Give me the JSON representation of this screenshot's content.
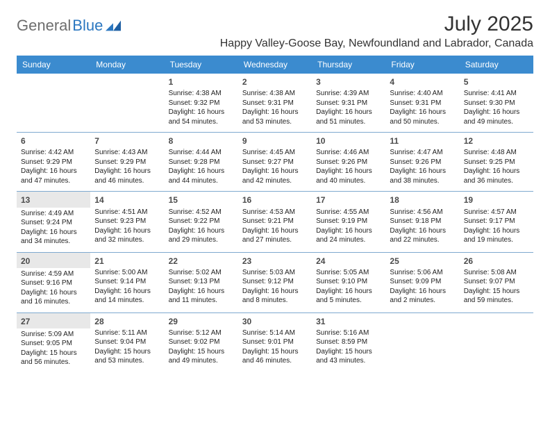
{
  "logo": {
    "word1": "General",
    "word2": "Blue"
  },
  "title": "July 2025",
  "location": "Happy Valley-Goose Bay, Newfoundland and Labrador, Canada",
  "colors": {
    "header_bg": "#3b8bcf",
    "header_text": "#ffffff",
    "row_border": "#7ea9cf",
    "shade_bg": "#e8e8e8",
    "body_text": "#222222",
    "logo_gray": "#6d6d6d",
    "logo_blue": "#2b77c0"
  },
  "weekdays": [
    "Sunday",
    "Monday",
    "Tuesday",
    "Wednesday",
    "Thursday",
    "Friday",
    "Saturday"
  ],
  "weeks": [
    [
      null,
      null,
      {
        "n": "1",
        "sr": "Sunrise: 4:38 AM",
        "ss": "Sunset: 9:32 PM",
        "dl": "Daylight: 16 hours and 54 minutes."
      },
      {
        "n": "2",
        "sr": "Sunrise: 4:38 AM",
        "ss": "Sunset: 9:31 PM",
        "dl": "Daylight: 16 hours and 53 minutes."
      },
      {
        "n": "3",
        "sr": "Sunrise: 4:39 AM",
        "ss": "Sunset: 9:31 PM",
        "dl": "Daylight: 16 hours and 51 minutes."
      },
      {
        "n": "4",
        "sr": "Sunrise: 4:40 AM",
        "ss": "Sunset: 9:31 PM",
        "dl": "Daylight: 16 hours and 50 minutes."
      },
      {
        "n": "5",
        "sr": "Sunrise: 4:41 AM",
        "ss": "Sunset: 9:30 PM",
        "dl": "Daylight: 16 hours and 49 minutes."
      }
    ],
    [
      {
        "n": "6",
        "sr": "Sunrise: 4:42 AM",
        "ss": "Sunset: 9:29 PM",
        "dl": "Daylight: 16 hours and 47 minutes."
      },
      {
        "n": "7",
        "sr": "Sunrise: 4:43 AM",
        "ss": "Sunset: 9:29 PM",
        "dl": "Daylight: 16 hours and 46 minutes."
      },
      {
        "n": "8",
        "sr": "Sunrise: 4:44 AM",
        "ss": "Sunset: 9:28 PM",
        "dl": "Daylight: 16 hours and 44 minutes."
      },
      {
        "n": "9",
        "sr": "Sunrise: 4:45 AM",
        "ss": "Sunset: 9:27 PM",
        "dl": "Daylight: 16 hours and 42 minutes."
      },
      {
        "n": "10",
        "sr": "Sunrise: 4:46 AM",
        "ss": "Sunset: 9:26 PM",
        "dl": "Daylight: 16 hours and 40 minutes."
      },
      {
        "n": "11",
        "sr": "Sunrise: 4:47 AM",
        "ss": "Sunset: 9:26 PM",
        "dl": "Daylight: 16 hours and 38 minutes."
      },
      {
        "n": "12",
        "sr": "Sunrise: 4:48 AM",
        "ss": "Sunset: 9:25 PM",
        "dl": "Daylight: 16 hours and 36 minutes."
      }
    ],
    [
      {
        "n": "13",
        "sr": "Sunrise: 4:49 AM",
        "ss": "Sunset: 9:24 PM",
        "dl": "Daylight: 16 hours and 34 minutes.",
        "shade": true
      },
      {
        "n": "14",
        "sr": "Sunrise: 4:51 AM",
        "ss": "Sunset: 9:23 PM",
        "dl": "Daylight: 16 hours and 32 minutes."
      },
      {
        "n": "15",
        "sr": "Sunrise: 4:52 AM",
        "ss": "Sunset: 9:22 PM",
        "dl": "Daylight: 16 hours and 29 minutes."
      },
      {
        "n": "16",
        "sr": "Sunrise: 4:53 AM",
        "ss": "Sunset: 9:21 PM",
        "dl": "Daylight: 16 hours and 27 minutes."
      },
      {
        "n": "17",
        "sr": "Sunrise: 4:55 AM",
        "ss": "Sunset: 9:19 PM",
        "dl": "Daylight: 16 hours and 24 minutes."
      },
      {
        "n": "18",
        "sr": "Sunrise: 4:56 AM",
        "ss": "Sunset: 9:18 PM",
        "dl": "Daylight: 16 hours and 22 minutes."
      },
      {
        "n": "19",
        "sr": "Sunrise: 4:57 AM",
        "ss": "Sunset: 9:17 PM",
        "dl": "Daylight: 16 hours and 19 minutes."
      }
    ],
    [
      {
        "n": "20",
        "sr": "Sunrise: 4:59 AM",
        "ss": "Sunset: 9:16 PM",
        "dl": "Daylight: 16 hours and 16 minutes.",
        "shade": true
      },
      {
        "n": "21",
        "sr": "Sunrise: 5:00 AM",
        "ss": "Sunset: 9:14 PM",
        "dl": "Daylight: 16 hours and 14 minutes."
      },
      {
        "n": "22",
        "sr": "Sunrise: 5:02 AM",
        "ss": "Sunset: 9:13 PM",
        "dl": "Daylight: 16 hours and 11 minutes."
      },
      {
        "n": "23",
        "sr": "Sunrise: 5:03 AM",
        "ss": "Sunset: 9:12 PM",
        "dl": "Daylight: 16 hours and 8 minutes."
      },
      {
        "n": "24",
        "sr": "Sunrise: 5:05 AM",
        "ss": "Sunset: 9:10 PM",
        "dl": "Daylight: 16 hours and 5 minutes."
      },
      {
        "n": "25",
        "sr": "Sunrise: 5:06 AM",
        "ss": "Sunset: 9:09 PM",
        "dl": "Daylight: 16 hours and 2 minutes."
      },
      {
        "n": "26",
        "sr": "Sunrise: 5:08 AM",
        "ss": "Sunset: 9:07 PM",
        "dl": "Daylight: 15 hours and 59 minutes."
      }
    ],
    [
      {
        "n": "27",
        "sr": "Sunrise: 5:09 AM",
        "ss": "Sunset: 9:05 PM",
        "dl": "Daylight: 15 hours and 56 minutes.",
        "shade": true
      },
      {
        "n": "28",
        "sr": "Sunrise: 5:11 AM",
        "ss": "Sunset: 9:04 PM",
        "dl": "Daylight: 15 hours and 53 minutes."
      },
      {
        "n": "29",
        "sr": "Sunrise: 5:12 AM",
        "ss": "Sunset: 9:02 PM",
        "dl": "Daylight: 15 hours and 49 minutes."
      },
      {
        "n": "30",
        "sr": "Sunrise: 5:14 AM",
        "ss": "Sunset: 9:01 PM",
        "dl": "Daylight: 15 hours and 46 minutes."
      },
      {
        "n": "31",
        "sr": "Sunrise: 5:16 AM",
        "ss": "Sunset: 8:59 PM",
        "dl": "Daylight: 15 hours and 43 minutes."
      },
      null,
      null
    ]
  ]
}
